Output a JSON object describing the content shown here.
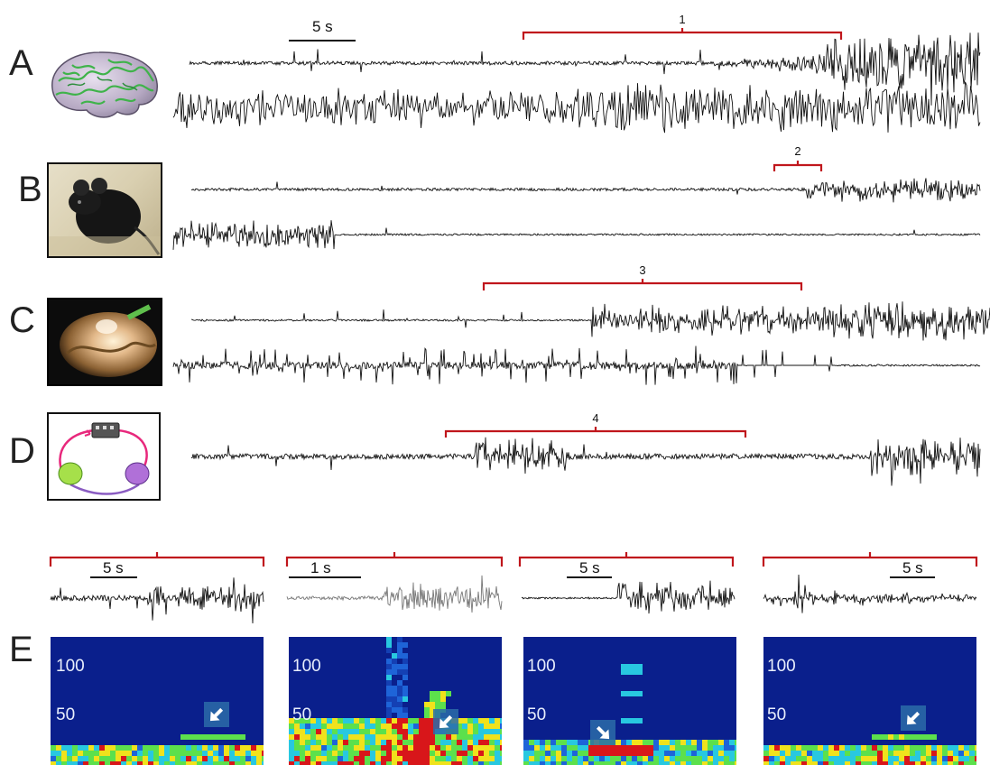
{
  "panels": {
    "A": {
      "letter": "A",
      "image": "brain-model"
    },
    "B": {
      "letter": "B",
      "image": "mouse-photo"
    },
    "C": {
      "letter": "C",
      "image": "slice-preparation-photo"
    },
    "D": {
      "letter": "D",
      "image": "network-model-diagram"
    },
    "E": {
      "letter": "E"
    }
  },
  "scale_bar": {
    "top": "5 s"
  },
  "brackets": [
    "1",
    "2",
    "3",
    "4"
  ],
  "insets": [
    {
      "id": "1",
      "scale": "5 s",
      "freq_100": "100",
      "freq_50": "50"
    },
    {
      "id": "2",
      "scale": "1 s",
      "freq_100": "100",
      "freq_50": "50"
    },
    {
      "id": "3",
      "scale": "5 s",
      "freq_100": "100",
      "freq_50": "50"
    },
    {
      "id": "4",
      "scale": "5 s",
      "freq_100": "100",
      "freq_50": "50"
    }
  ],
  "colors": {
    "bracket": "#c0161c",
    "trace": "#111111",
    "spectrogram_bg": "#0a1f8c"
  }
}
